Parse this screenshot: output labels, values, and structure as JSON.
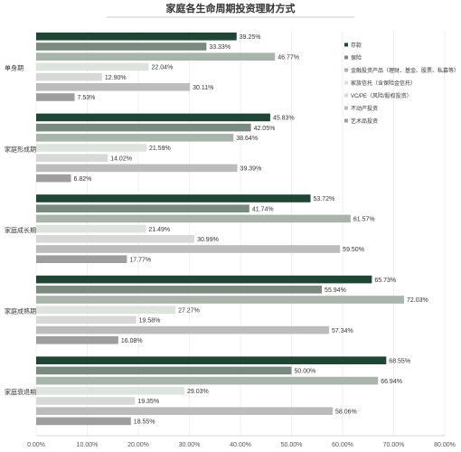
{
  "chart_data": {
    "type": "bar",
    "orientation": "horizontal",
    "title": "家庭各生命周期投资理财方式",
    "xlabel": "",
    "ylabel": "",
    "xlim": [
      0,
      80
    ],
    "ticks": [
      "0.00%",
      "10.00%",
      "20.00%",
      "30.00%",
      "40.00%",
      "50.00%",
      "60.00%",
      "70.00%",
      "80.00%"
    ],
    "grid": true,
    "legend_position": "right",
    "categories": [
      "单身期",
      "家庭形成期",
      "家庭成长期",
      "家庭成熟期",
      "家庭衰退期"
    ],
    "series": [
      {
        "name": "存款",
        "color": "#1f4535",
        "values": [
          39.25,
          45.83,
          53.72,
          65.73,
          68.55
        ],
        "labels": [
          "39.25%",
          "45.83%",
          "53.72%",
          "65.73%",
          "68.55%"
        ]
      },
      {
        "name": "保险",
        "color": "#7a8a7f",
        "values": [
          33.33,
          42.05,
          41.74,
          55.94,
          50.0
        ],
        "labels": [
          "33.33%",
          "42.05%",
          "41.74%",
          "55.94%",
          "50.00%"
        ]
      },
      {
        "name": "金融投资产品（理财、基金、股票、私募等）",
        "color": "#a9b4ab",
        "values": [
          46.77,
          38.64,
          61.57,
          72.03,
          66.94
        ],
        "labels": [
          "46.77%",
          "38.64%",
          "61.57%",
          "72.03%",
          "66.94%"
        ]
      },
      {
        "name": "家族信托（含保险金信托）",
        "color": "#dde4dd",
        "values": [
          22.04,
          21.59,
          21.49,
          27.27,
          29.03
        ],
        "labels": [
          "22.04%",
          "21.59%",
          "21.49%",
          "27.27%",
          "29.03%"
        ]
      },
      {
        "name": "VC/PE（风险/股权投资）",
        "color": "#d7d9d7",
        "values": [
          12.9,
          14.02,
          30.99,
          19.58,
          19.35
        ],
        "labels": [
          "12.90%",
          "14.02%",
          "30.99%",
          "19.58%",
          "19.35%"
        ]
      },
      {
        "name": "不动产投资",
        "color": "#bcbcbc",
        "values": [
          30.11,
          39.39,
          59.5,
          57.34,
          58.06
        ],
        "labels": [
          "30.11%",
          "39.39%",
          "59.50%",
          "57.34%",
          "58.06%"
        ]
      },
      {
        "name": "艺术品投资",
        "color": "#9e9e9e",
        "values": [
          7.53,
          6.82,
          17.77,
          16.08,
          18.55
        ],
        "labels": [
          "7.53%",
          "6.82%",
          "17.77%",
          "16.08%",
          "18.55%"
        ]
      }
    ]
  }
}
